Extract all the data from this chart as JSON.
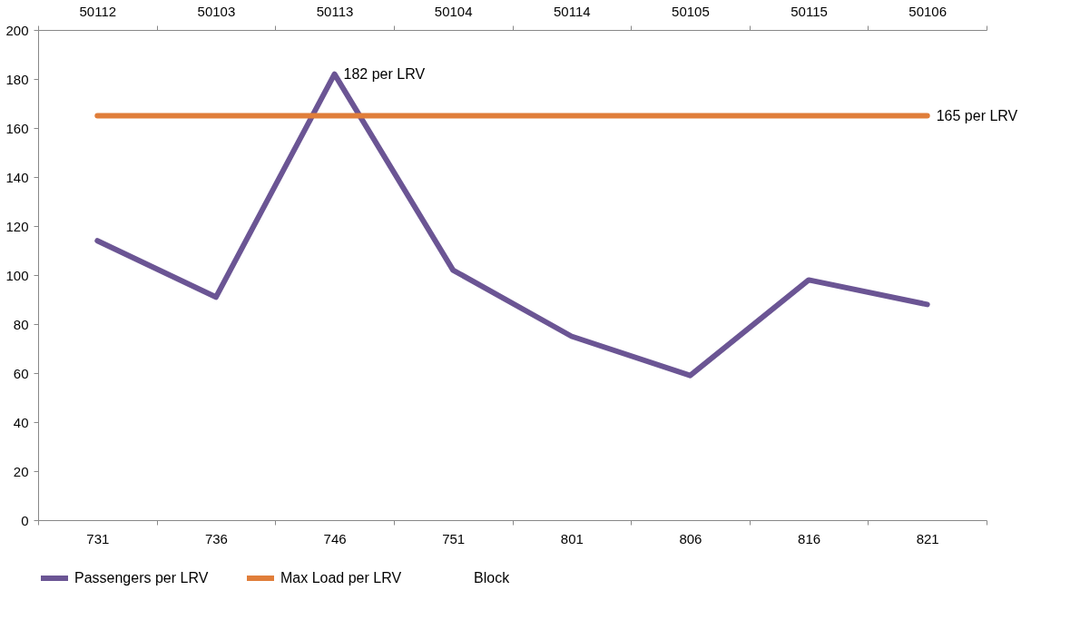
{
  "chart_data": {
    "type": "line",
    "categories": [
      "731",
      "736",
      "746",
      "751",
      "801",
      "806",
      "816",
      "821"
    ],
    "series": [
      {
        "name": "Passengers per LRV",
        "color": "#6b5594",
        "values": [
          114,
          91,
          182,
          102,
          75,
          59,
          98,
          88
        ]
      },
      {
        "name": "Max Load per LRV",
        "color": "#e07e3a",
        "values": [
          165,
          165,
          165,
          165,
          165,
          165,
          165,
          165
        ]
      },
      {
        "name": "Block",
        "values": [
          null,
          null,
          null,
          null,
          null,
          null,
          null,
          null
        ]
      }
    ],
    "ylim": [
      0,
      200
    ],
    "yticks": [
      0,
      20,
      40,
      60,
      80,
      100,
      120,
      140,
      160,
      180,
      200
    ],
    "annotations": [
      {
        "text": "182 per LRV",
        "x": "746",
        "y": 182
      },
      {
        "text": "165 per LRV",
        "x": "821",
        "y": 165
      },
      "50112",
      "50103",
      "50113",
      "50104",
      "50114",
      "50105",
      "50115",
      "50106"
    ],
    "grid": false,
    "legend": "bottom",
    "marker": "none",
    "line_style": "solid"
  }
}
